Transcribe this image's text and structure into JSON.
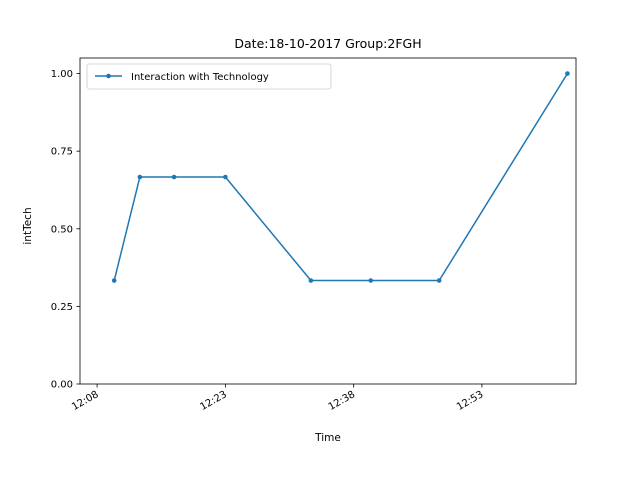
{
  "chart_data": {
    "type": "line",
    "title": "Date:18-10-2017  Group:2FGH",
    "xlabel": "Time",
    "ylabel": "intTech",
    "x_tick_labels": [
      "12:08",
      "12:23",
      "12:38",
      "12:53"
    ],
    "y_tick_labels": [
      "0.00",
      "0.25",
      "0.50",
      "0.75",
      "1.00"
    ],
    "xlim": [
      "12:06",
      "13:04"
    ],
    "ylim": [
      0,
      1.05
    ],
    "grid": false,
    "legend_position": "top-left",
    "series": [
      {
        "name": "Interaction with Technology",
        "color": "#1f77b4",
        "marker": "point",
        "points": [
          {
            "x": "12:10",
            "y": 0.3333
          },
          {
            "x": "12:13",
            "y": 0.6667
          },
          {
            "x": "12:17",
            "y": 0.6667
          },
          {
            "x": "12:23",
            "y": 0.6667
          },
          {
            "x": "12:33",
            "y": 0.3333
          },
          {
            "x": "12:40",
            "y": 0.3333
          },
          {
            "x": "12:48",
            "y": 0.3333
          },
          {
            "x": "13:03",
            "y": 1.0
          }
        ]
      }
    ]
  }
}
